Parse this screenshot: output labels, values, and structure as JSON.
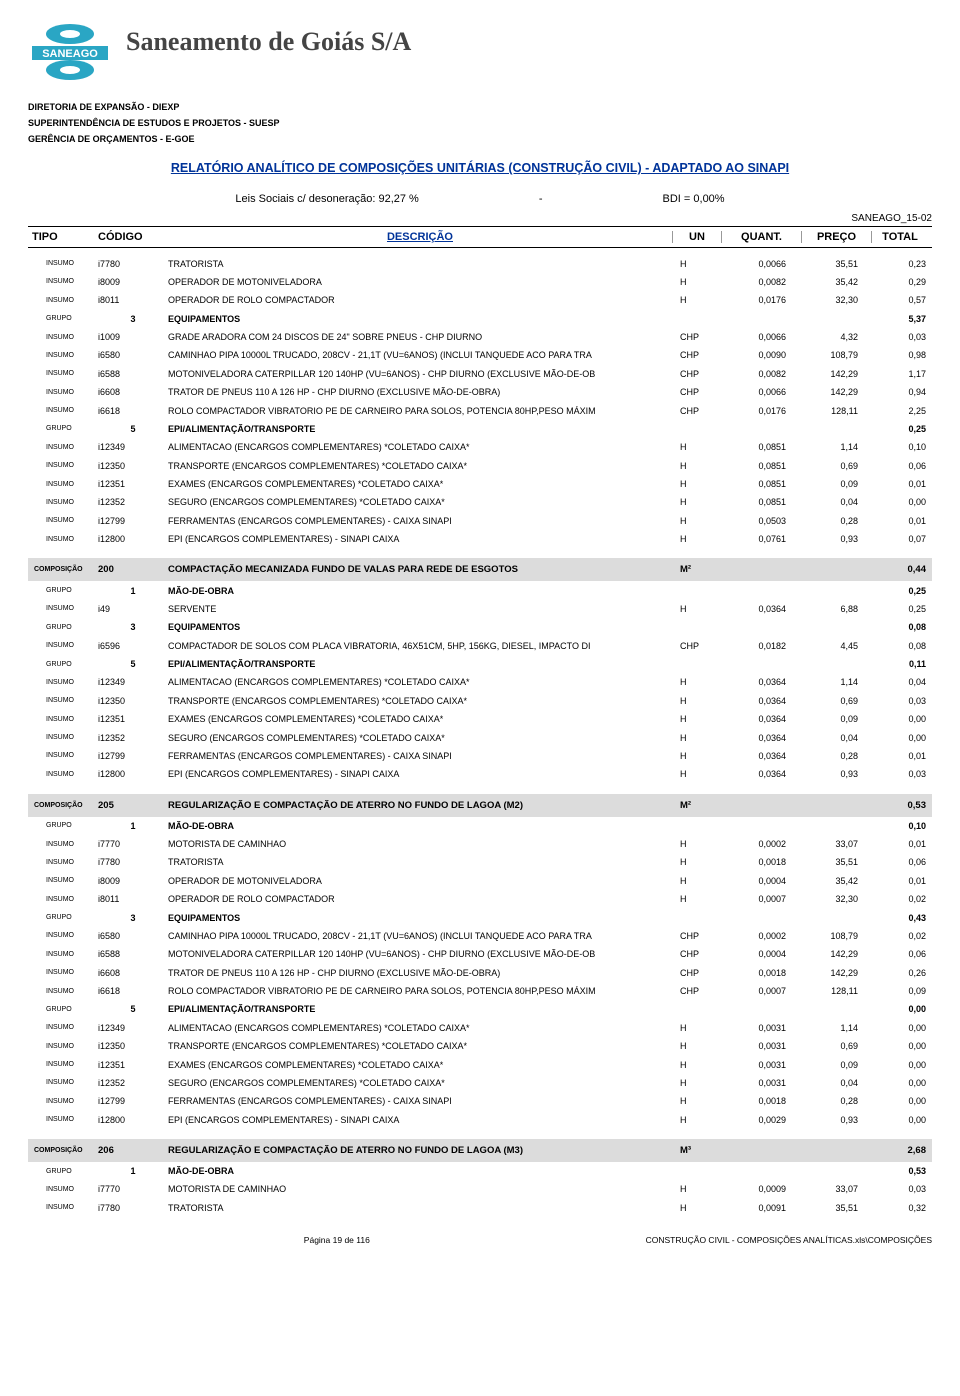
{
  "header": {
    "company": "Saneamento de Goiás S/A",
    "dept1": "DIRETORIA DE EXPANSÃO - DIEXP",
    "dept2": "SUPERINTENDÊNCIA DE ESTUDOS E PROJETOS - SUESP",
    "dept3": "GERÊNCIA DE ORÇAMENTOS - E-GOE",
    "report_title": "RELATÓRIO ANALÍTICO DE COMPOSIÇÕES UNITÁRIAS (CONSTRUÇÃO CIVIL) - ADAPTADO AO SINAPI",
    "leis": "Leis Sociais c/ desoneração: 92,27 %",
    "dash": "-",
    "bdi": "BDI = 0,00%",
    "doc_ref": "SANEAGO_15-02"
  },
  "columns": {
    "tipo": "TIPO",
    "codigo": "CÓDIGO",
    "descricao": "DESCRIÇÃO",
    "un": "UN",
    "quant": "QUANT.",
    "preco": "PREÇO",
    "total": "TOTAL"
  },
  "logo": {
    "rect_fill": "#2aa6c4",
    "text": "SANEAGO",
    "text_color": "#ffffff",
    "circle_fill": "#2aa6c4"
  },
  "rows": [
    {
      "t": "INSUMO",
      "c": "i7780",
      "d": "TRATORISTA",
      "u": "H",
      "q": "0,0066",
      "p": "35,51",
      "tot": "0,23"
    },
    {
      "t": "INSUMO",
      "c": "i8009",
      "d": "OPERADOR DE MOTONIVELADORA",
      "u": "H",
      "q": "0,0082",
      "p": "35,42",
      "tot": "0,29"
    },
    {
      "t": "INSUMO",
      "c": "i8011",
      "d": "OPERADOR DE ROLO COMPACTADOR",
      "u": "H",
      "q": "0,0176",
      "p": "32,30",
      "tot": "0,57"
    },
    {
      "kind": "grupo",
      "t": "GRUPO",
      "c": "3",
      "d": "EQUIPAMENTOS",
      "tot": "5,37"
    },
    {
      "t": "INSUMO",
      "c": "i1009",
      "d": "GRADE ARADORA COM 24 DISCOS DE 24\" SOBRE PNEUS - CHP DIURNO",
      "u": "CHP",
      "q": "0,0066",
      "p": "4,32",
      "tot": "0,03"
    },
    {
      "t": "INSUMO",
      "c": "i6580",
      "d": "CAMINHAO PIPA 10000L TRUCADO, 208CV - 21,1T (VU=6ANOS) (INCLUI TANQUEDE ACO PARA TRA",
      "u": "CHP",
      "q": "0,0090",
      "p": "108,79",
      "tot": "0,98"
    },
    {
      "t": "INSUMO",
      "c": "i6588",
      "d": "MOTONIVELADORA CATERPILLAR 120 140HP (VU=6ANOS) - CHP DIURNO  (EXCLUSIVE MÃO-DE-OB",
      "u": "CHP",
      "q": "0,0082",
      "p": "142,29",
      "tot": "1,17"
    },
    {
      "t": "INSUMO",
      "c": "i6608",
      "d": "TRATOR DE PNEUS 110 A 126 HP - CHP DIURNO  (EXCLUSIVE MÃO-DE-OBRA)",
      "u": "CHP",
      "q": "0,0066",
      "p": "142,29",
      "tot": "0,94"
    },
    {
      "t": "INSUMO",
      "c": "i6618",
      "d": "ROLO COMPACTADOR VIBRATORIO PE DE CARNEIRO PARA SOLOS, POTENCIA 80HP,PESO MÁXIM",
      "u": "CHP",
      "q": "0,0176",
      "p": "128,11",
      "tot": "2,25"
    },
    {
      "kind": "grupo",
      "t": "GRUPO",
      "c": "5",
      "d": "EPI/ALIMENTAÇÃO/TRANSPORTE",
      "tot": "0,25"
    },
    {
      "t": "INSUMO",
      "c": "i12349",
      "d": "ALIMENTACAO (ENCARGOS COMPLEMENTARES) *COLETADO CAIXA*",
      "u": "H",
      "q": "0,0851",
      "p": "1,14",
      "tot": "0,10"
    },
    {
      "t": "INSUMO",
      "c": "i12350",
      "d": "TRANSPORTE (ENCARGOS COMPLEMENTARES) *COLETADO CAIXA*",
      "u": "H",
      "q": "0,0851",
      "p": "0,69",
      "tot": "0,06"
    },
    {
      "t": "INSUMO",
      "c": "i12351",
      "d": "EXAMES (ENCARGOS COMPLEMENTARES) *COLETADO CAIXA*",
      "u": "H",
      "q": "0,0851",
      "p": "0,09",
      "tot": "0,01"
    },
    {
      "t": "INSUMO",
      "c": "i12352",
      "d": "SEGURO (ENCARGOS COMPLEMENTARES) *COLETADO CAIXA*",
      "u": "H",
      "q": "0,0851",
      "p": "0,04",
      "tot": "0,00"
    },
    {
      "t": "INSUMO",
      "c": "i12799",
      "d": "FERRAMENTAS (ENCARGOS COMPLEMENTARES) - CAIXA SINAPI",
      "u": "H",
      "q": "0,0503",
      "p": "0,28",
      "tot": "0,01"
    },
    {
      "t": "INSUMO",
      "c": "i12800",
      "d": "EPI (ENCARGOS COMPLEMENTARES) - SINAPI CAIXA",
      "u": "H",
      "q": "0,0761",
      "p": "0,93",
      "tot": "0,07"
    },
    {
      "kind": "compos",
      "t": "COMPOSIÇÃO",
      "c": "200",
      "d": "COMPACTAÇÃO MECANIZADA FUNDO DE VALAS PARA  REDE DE ESGOTOS",
      "u": "M²",
      "tot": "0,44"
    },
    {
      "kind": "grupo",
      "t": "GRUPO",
      "c": "1",
      "d": "MÃO-DE-OBRA",
      "tot": "0,25"
    },
    {
      "t": "INSUMO",
      "c": "i49",
      "d": "SERVENTE",
      "u": "H",
      "q": "0,0364",
      "p": "6,88",
      "tot": "0,25"
    },
    {
      "kind": "grupo",
      "t": "GRUPO",
      "c": "3",
      "d": "EQUIPAMENTOS",
      "tot": "0,08"
    },
    {
      "t": "INSUMO",
      "c": "i6596",
      "d": "COMPACTADOR DE SOLOS COM PLACA VIBRATORIA, 46X51CM, 5HP, 156KG, DIESEL, IMPACTO DI",
      "u": "CHP",
      "q": "0,0182",
      "p": "4,45",
      "tot": "0,08"
    },
    {
      "kind": "grupo",
      "t": "GRUPO",
      "c": "5",
      "d": "EPI/ALIMENTAÇÃO/TRANSPORTE",
      "tot": "0,11"
    },
    {
      "t": "INSUMO",
      "c": "i12349",
      "d": "ALIMENTACAO (ENCARGOS COMPLEMENTARES) *COLETADO CAIXA*",
      "u": "H",
      "q": "0,0364",
      "p": "1,14",
      "tot": "0,04"
    },
    {
      "t": "INSUMO",
      "c": "i12350",
      "d": "TRANSPORTE (ENCARGOS COMPLEMENTARES) *COLETADO CAIXA*",
      "u": "H",
      "q": "0,0364",
      "p": "0,69",
      "tot": "0,03"
    },
    {
      "t": "INSUMO",
      "c": "i12351",
      "d": "EXAMES (ENCARGOS COMPLEMENTARES) *COLETADO CAIXA*",
      "u": "H",
      "q": "0,0364",
      "p": "0,09",
      "tot": "0,00"
    },
    {
      "t": "INSUMO",
      "c": "i12352",
      "d": "SEGURO (ENCARGOS COMPLEMENTARES) *COLETADO CAIXA*",
      "u": "H",
      "q": "0,0364",
      "p": "0,04",
      "tot": "0,00"
    },
    {
      "t": "INSUMO",
      "c": "i12799",
      "d": "FERRAMENTAS (ENCARGOS COMPLEMENTARES) - CAIXA SINAPI",
      "u": "H",
      "q": "0,0364",
      "p": "0,28",
      "tot": "0,01"
    },
    {
      "t": "INSUMO",
      "c": "i12800",
      "d": "EPI (ENCARGOS COMPLEMENTARES) - SINAPI CAIXA",
      "u": "H",
      "q": "0,0364",
      "p": "0,93",
      "tot": "0,03"
    },
    {
      "kind": "compos",
      "t": "COMPOSIÇÃO",
      "c": "205",
      "d": "REGULARIZAÇÃO E COMPACTAÇÃO DE ATERRO NO FUNDO DE LAGOA (M2)",
      "u": "M²",
      "tot": "0,53"
    },
    {
      "kind": "grupo",
      "t": "GRUPO",
      "c": "1",
      "d": "MÃO-DE-OBRA",
      "tot": "0,10"
    },
    {
      "t": "INSUMO",
      "c": "i7770",
      "d": "MOTORISTA DE CAMINHAO",
      "u": "H",
      "q": "0,0002",
      "p": "33,07",
      "tot": "0,01"
    },
    {
      "t": "INSUMO",
      "c": "i7780",
      "d": "TRATORISTA",
      "u": "H",
      "q": "0,0018",
      "p": "35,51",
      "tot": "0,06"
    },
    {
      "t": "INSUMO",
      "c": "i8009",
      "d": "OPERADOR DE MOTONIVELADORA",
      "u": "H",
      "q": "0,0004",
      "p": "35,42",
      "tot": "0,01"
    },
    {
      "t": "INSUMO",
      "c": "i8011",
      "d": "OPERADOR DE ROLO COMPACTADOR",
      "u": "H",
      "q": "0,0007",
      "p": "32,30",
      "tot": "0,02"
    },
    {
      "kind": "grupo",
      "t": "GRUPO",
      "c": "3",
      "d": "EQUIPAMENTOS",
      "tot": "0,43"
    },
    {
      "t": "INSUMO",
      "c": "i6580",
      "d": "CAMINHAO PIPA 10000L TRUCADO, 208CV - 21,1T (VU=6ANOS) (INCLUI TANQUEDE ACO PARA TRA",
      "u": "CHP",
      "q": "0,0002",
      "p": "108,79",
      "tot": "0,02"
    },
    {
      "t": "INSUMO",
      "c": "i6588",
      "d": "MOTONIVELADORA CATERPILLAR 120 140HP (VU=6ANOS) - CHP DIURNO  (EXCLUSIVE MÃO-DE-OB",
      "u": "CHP",
      "q": "0,0004",
      "p": "142,29",
      "tot": "0,06"
    },
    {
      "t": "INSUMO",
      "c": "i6608",
      "d": "TRATOR DE PNEUS 110 A 126 HP - CHP DIURNO  (EXCLUSIVE MÃO-DE-OBRA)",
      "u": "CHP",
      "q": "0,0018",
      "p": "142,29",
      "tot": "0,26"
    },
    {
      "t": "INSUMO",
      "c": "i6618",
      "d": "ROLO COMPACTADOR VIBRATORIO PE DE CARNEIRO PARA SOLOS, POTENCIA 80HP,PESO MÁXIM",
      "u": "CHP",
      "q": "0,0007",
      "p": "128,11",
      "tot": "0,09"
    },
    {
      "kind": "grupo",
      "t": "GRUPO",
      "c": "5",
      "d": "EPI/ALIMENTAÇÃO/TRANSPORTE",
      "tot": "0,00"
    },
    {
      "t": "INSUMO",
      "c": "i12349",
      "d": "ALIMENTACAO (ENCARGOS COMPLEMENTARES) *COLETADO CAIXA*",
      "u": "H",
      "q": "0,0031",
      "p": "1,14",
      "tot": "0,00"
    },
    {
      "t": "INSUMO",
      "c": "i12350",
      "d": "TRANSPORTE (ENCARGOS COMPLEMENTARES) *COLETADO CAIXA*",
      "u": "H",
      "q": "0,0031",
      "p": "0,69",
      "tot": "0,00"
    },
    {
      "t": "INSUMO",
      "c": "i12351",
      "d": "EXAMES (ENCARGOS COMPLEMENTARES) *COLETADO CAIXA*",
      "u": "H",
      "q": "0,0031",
      "p": "0,09",
      "tot": "0,00"
    },
    {
      "t": "INSUMO",
      "c": "i12352",
      "d": "SEGURO (ENCARGOS COMPLEMENTARES) *COLETADO CAIXA*",
      "u": "H",
      "q": "0,0031",
      "p": "0,04",
      "tot": "0,00"
    },
    {
      "t": "INSUMO",
      "c": "i12799",
      "d": "FERRAMENTAS (ENCARGOS COMPLEMENTARES) - CAIXA SINAPI",
      "u": "H",
      "q": "0,0018",
      "p": "0,28",
      "tot": "0,00"
    },
    {
      "t": "INSUMO",
      "c": "i12800",
      "d": "EPI (ENCARGOS COMPLEMENTARES) - SINAPI CAIXA",
      "u": "H",
      "q": "0,0029",
      "p": "0,93",
      "tot": "0,00"
    },
    {
      "kind": "compos",
      "t": "COMPOSIÇÃO",
      "c": "206",
      "d": "REGULARIZAÇÃO E COMPACTAÇÃO DE ATERRO NO FUNDO DE LAGOA (M3)",
      "u": "M³",
      "tot": "2,68"
    },
    {
      "kind": "grupo",
      "t": "GRUPO",
      "c": "1",
      "d": "MÃO-DE-OBRA",
      "tot": "0,53"
    },
    {
      "t": "INSUMO",
      "c": "i7770",
      "d": "MOTORISTA DE CAMINHAO",
      "u": "H",
      "q": "0,0009",
      "p": "33,07",
      "tot": "0,03"
    },
    {
      "t": "INSUMO",
      "c": "i7780",
      "d": "TRATORISTA",
      "u": "H",
      "q": "0,0091",
      "p": "35,51",
      "tot": "0,32"
    }
  ],
  "footer": {
    "page": "Página 19 de 116",
    "right": "CONSTRUÇÃO CIVIL - COMPOSIÇÕES ANALÍTICAS.xls\\COMPOSIÇÕES"
  }
}
